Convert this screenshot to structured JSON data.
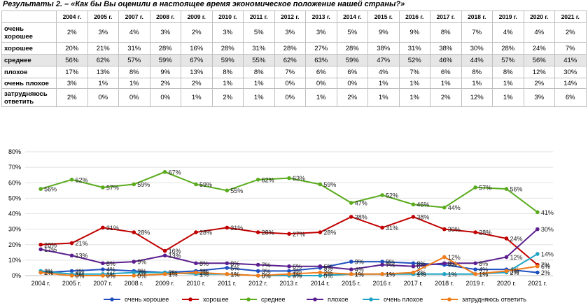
{
  "title": "Результаты 2. – «Как бы Вы оценили в настоящее время экономическое положение нашей страны?»",
  "table": {
    "years": [
      "2004 г.",
      "2005 г.",
      "2007 г.",
      "2008 г.",
      "2009 г.",
      "2010 г.",
      "2011 г.",
      "2012 г.",
      "2013 г.",
      "2014 г.",
      "2015 г.",
      "2016 г.",
      "2017 г.",
      "2018 г.",
      "2019 г.",
      "2020 г.",
      "2021 г."
    ],
    "rows": [
      {
        "label_lines": [
          "очень",
          "хорошее"
        ],
        "values": [
          "2%",
          "3%",
          "4%",
          "3%",
          "2%",
          "3%",
          "5%",
          "3%",
          "3%",
          "5%",
          "9%",
          "9%",
          "8%",
          "7%",
          "4%",
          "4%",
          "2%"
        ],
        "shaded": false
      },
      {
        "label_lines": [
          "хорошее"
        ],
        "values": [
          "20%",
          "21%",
          "31%",
          "28%",
          "16%",
          "28%",
          "31%",
          "28%",
          "27%",
          "28%",
          "38%",
          "31%",
          "38%",
          "30%",
          "28%",
          "24%",
          "7%"
        ],
        "shaded": false
      },
      {
        "label_lines": [
          "среднее"
        ],
        "values": [
          "56%",
          "62%",
          "57%",
          "59%",
          "67%",
          "59%",
          "55%",
          "62%",
          "63%",
          "59%",
          "47%",
          "52%",
          "46%",
          "44%",
          "57%",
          "56%",
          "41%"
        ],
        "shaded": true
      },
      {
        "label_lines": [
          "плохое"
        ],
        "values": [
          "17%",
          "13%",
          "8%",
          "9%",
          "13%",
          "8%",
          "8%",
          "7%",
          "6%",
          "6%",
          "4%",
          "7%",
          "6%",
          "8%",
          "8%",
          "12%",
          "30%"
        ],
        "shaded": false
      },
      {
        "label_lines": [
          "очень плохое"
        ],
        "values": [
          "3%",
          "1%",
          "1%",
          "2%",
          "2%",
          "1%",
          "1%",
          "0%",
          "0%",
          "0%",
          "1%",
          "1%",
          "1%",
          "1%",
          "1%",
          "2%",
          "14%"
        ],
        "shaded": false
      },
      {
        "label_lines": [
          "затрудняюсь",
          "ответить"
        ],
        "values": [
          "2%",
          "0%",
          "0%",
          "0%",
          "1%",
          "2%",
          "1%",
          "0%",
          "1%",
          "2%",
          "1%",
          "1%",
          "2%",
          "12%",
          "1%",
          "3%",
          "6%"
        ],
        "shaded": false
      }
    ]
  },
  "chart_data": {
    "type": "line",
    "categories": [
      "2004 г.",
      "2005 г.",
      "2007 г.",
      "2008 г.",
      "2009 г.",
      "2010 г.",
      "2011 г.",
      "2012 г.",
      "2013 г.",
      "2014 г.",
      "2015 г.",
      "2016 г.",
      "2017 г.",
      "2018 г.",
      "2019 г.",
      "2020 г.",
      "2021 г."
    ],
    "ylim": [
      0,
      80
    ],
    "yticks": [
      "0%",
      "10%",
      "20%",
      "30%",
      "40%",
      "50%",
      "60%",
      "70%",
      "80%"
    ],
    "grid": true,
    "legend_position": "bottom",
    "series": [
      {
        "name": "очень хорошее",
        "color": "#1f4fbf",
        "values": [
          2,
          3,
          4,
          3,
          2,
          3,
          5,
          3,
          3,
          5,
          9,
          9,
          8,
          7,
          4,
          4,
          2
        ],
        "labels": [
          "2%",
          "3%",
          "4%",
          "3%",
          "2%",
          "3%",
          "5%",
          "3%",
          "3%",
          "5%",
          "9%",
          "9%",
          "8%",
          "7%",
          "4%",
          "4%",
          "2%"
        ]
      },
      {
        "name": "хорошее",
        "color": "#c00000",
        "values": [
          20,
          21,
          31,
          28,
          16,
          28,
          31,
          28,
          27,
          28,
          38,
          31,
          38,
          30,
          28,
          24,
          7
        ],
        "labels": [
          "20%",
          "21%",
          "31%",
          "28%",
          "16%",
          "28%",
          "31%",
          "28%",
          "27%",
          "28%",
          "38%",
          "31%",
          "38%",
          "30%",
          "28%",
          "24%",
          "7%"
        ]
      },
      {
        "name": "среднее",
        "color": "#5aab1e",
        "values": [
          56,
          62,
          57,
          59,
          67,
          59,
          55,
          62,
          63,
          59,
          47,
          52,
          46,
          44,
          57,
          56,
          41
        ],
        "labels": [
          "56%",
          "62%",
          "57%",
          "59%",
          "67%",
          "59%",
          "55%",
          "62%",
          "63%",
          "59%",
          "47%",
          "52%",
          "46%",
          "44%",
          "57%",
          "56%",
          "41%"
        ]
      },
      {
        "name": "плохое",
        "color": "#5b1f8f",
        "values": [
          17,
          13,
          8,
          9,
          13,
          8,
          8,
          7,
          6,
          6,
          4,
          7,
          6,
          8,
          8,
          12,
          30
        ],
        "labels": [
          "17%",
          "13%",
          "8%",
          "9%",
          "13%",
          "8%",
          "8%",
          "7%",
          "6%",
          "6%",
          "4%",
          "7%",
          "6%",
          "8%",
          "8%",
          "12%",
          "30%"
        ]
      },
      {
        "name": "очень плохое",
        "color": "#1fa3c4",
        "values": [
          3,
          1,
          1,
          2,
          2,
          1,
          1,
          0,
          0,
          0,
          1,
          1,
          1,
          1,
          1,
          2,
          14
        ],
        "labels": [
          "3%",
          "1%",
          "1%",
          "2%",
          "2%",
          "1%",
          "1%",
          "0%",
          "0%",
          "0%",
          "1%",
          "1%",
          "1%",
          "1%",
          "1%",
          "2%",
          "14%"
        ]
      },
      {
        "name": "затрудняюсь ответить",
        "color": "#f07c1a",
        "values": [
          2,
          0,
          0,
          0,
          1,
          2,
          1,
          0,
          1,
          2,
          1,
          1,
          2,
          12,
          1,
          3,
          6
        ],
        "labels": [
          "2%",
          "0%",
          "0%",
          "0%",
          "1%",
          "2%",
          "1%",
          "0%",
          "1%",
          "2%",
          "1%",
          "1%",
          "2%",
          "12%",
          "1%",
          "3%",
          "6%"
        ]
      }
    ]
  }
}
